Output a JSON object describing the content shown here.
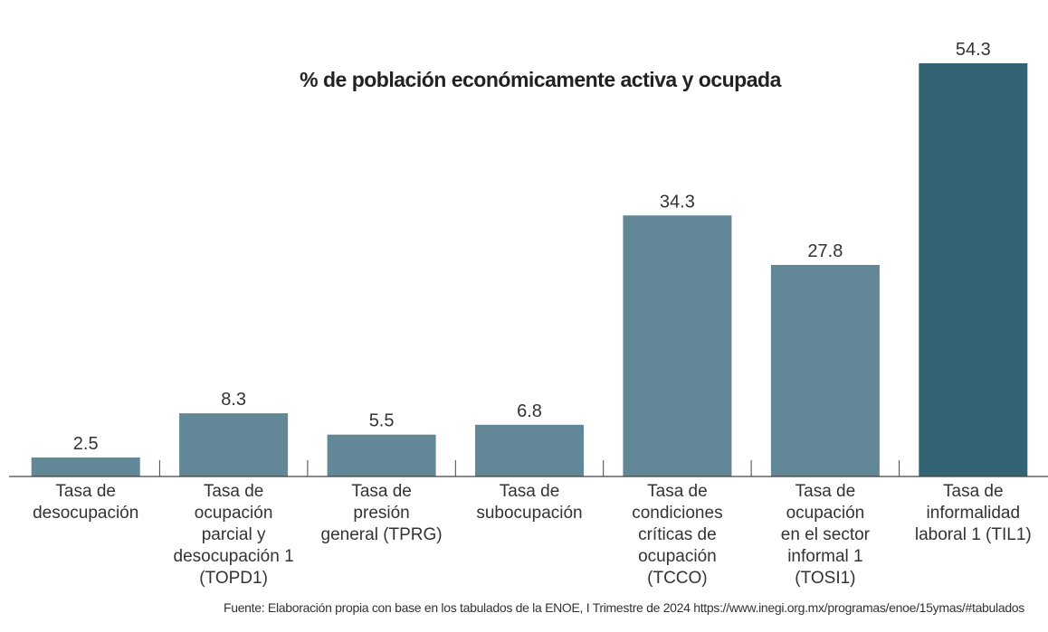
{
  "chart_data": {
    "type": "bar",
    "title": "% de población económicamente activa y ocupada",
    "categories": [
      "Tasa de desocupación",
      "Tasa de ocupación parcial y desocupación 1 (TOPD1)",
      "Tasa de presión general (TPRG)",
      "Tasa de subocupación",
      "Tasa de condiciones críticas de ocupación (TCCO)",
      "Tasa de ocupación en el sector informal 1 (TOSI1)",
      "Tasa de informalidad laboral 1 (TIL1)"
    ],
    "category_lines": [
      [
        "Tasa de",
        "desocupación"
      ],
      [
        "Tasa de",
        "ocupación",
        "parcial y",
        "desocupación 1",
        "(TOPD1)"
      ],
      [
        "Tasa de",
        "presión",
        "general (TPRG)"
      ],
      [
        "Tasa de",
        "subocupación"
      ],
      [
        "Tasa de",
        "condiciones",
        "críticas de",
        "ocupación",
        "(TCCO)"
      ],
      [
        "Tasa de",
        "ocupación",
        "en el sector",
        "informal 1",
        "(TOSI1)"
      ],
      [
        "Tasa de",
        "informalidad",
        "laboral 1 (TIL1)"
      ]
    ],
    "values": [
      2.5,
      8.3,
      5.5,
      6.8,
      34.3,
      27.8,
      54.3
    ],
    "value_labels": [
      "2.5",
      "8.3",
      "5.5",
      "6.8",
      "34.3",
      "27.8",
      "54.3"
    ],
    "ylim": [
      0,
      54.3
    ],
    "grid": false,
    "legend": "none",
    "colors": {
      "bar": "#628796",
      "highlight_bar": "#336474",
      "axis": "#444444"
    },
    "highlight_index": 6
  },
  "source_note": "Fuente: Elaboración propia con base en los tabulados de la ENOE, I Trimestre de 2024 https://www.inegi.org.mx/programas/enoe/15ymas/#tabulados"
}
